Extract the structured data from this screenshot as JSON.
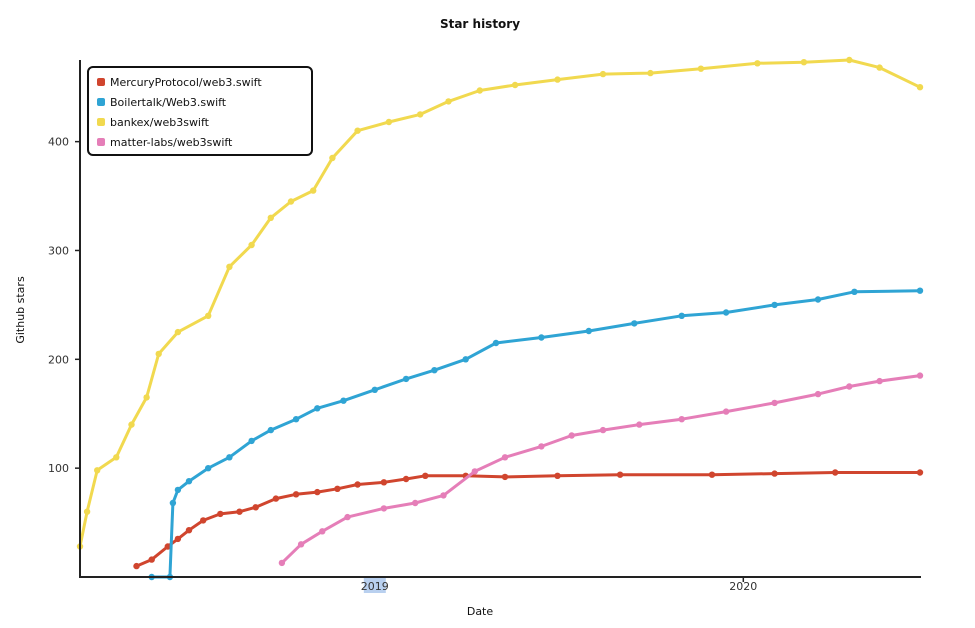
{
  "chart_data": {
    "type": "line",
    "title": "Star history",
    "xlabel": "Date",
    "ylabel": "Github stars",
    "xlim": [
      "2018-03-15",
      "2020-06-25"
    ],
    "ylim": [
      0,
      475
    ],
    "x_ticks": [
      {
        "date": "2019-01-01",
        "label": "2019",
        "highlight": true
      },
      {
        "date": "2020-01-01",
        "label": "2020",
        "highlight": false
      }
    ],
    "y_ticks": [
      100,
      200,
      300,
      400
    ],
    "legend_position": "top-left",
    "grid": false,
    "series": [
      {
        "name": "MercuryProtocol/web3.swift",
        "color": "#d0452e",
        "points": [
          [
            "2018-05-10",
            10
          ],
          [
            "2018-05-25",
            16
          ],
          [
            "2018-06-10",
            28
          ],
          [
            "2018-06-20",
            35
          ],
          [
            "2018-07-01",
            43
          ],
          [
            "2018-07-15",
            52
          ],
          [
            "2018-08-01",
            58
          ],
          [
            "2018-08-20",
            60
          ],
          [
            "2018-09-05",
            64
          ],
          [
            "2018-09-25",
            72
          ],
          [
            "2018-10-15",
            76
          ],
          [
            "2018-11-05",
            78
          ],
          [
            "2018-11-25",
            81
          ],
          [
            "2018-12-15",
            85
          ],
          [
            "2019-01-10",
            87
          ],
          [
            "2019-02-01",
            90
          ],
          [
            "2019-02-20",
            93
          ],
          [
            "2019-04-01",
            93
          ],
          [
            "2019-05-10",
            92
          ],
          [
            "2019-07-01",
            93
          ],
          [
            "2019-09-01",
            94
          ],
          [
            "2019-12-01",
            94
          ],
          [
            "2020-02-01",
            95
          ],
          [
            "2020-04-01",
            96
          ],
          [
            "2020-06-24",
            96
          ]
        ]
      },
      {
        "name": "Boilertalk/Web3.swift",
        "color": "#2fa4d4",
        "points": [
          [
            "2018-05-25",
            0
          ],
          [
            "2018-06-12",
            0
          ],
          [
            "2018-06-15",
            68
          ],
          [
            "2018-06-20",
            80
          ],
          [
            "2018-07-01",
            88
          ],
          [
            "2018-07-20",
            100
          ],
          [
            "2018-08-10",
            110
          ],
          [
            "2018-09-01",
            125
          ],
          [
            "2018-09-20",
            135
          ],
          [
            "2018-10-15",
            145
          ],
          [
            "2018-11-05",
            155
          ],
          [
            "2018-12-01",
            162
          ],
          [
            "2019-01-01",
            172
          ],
          [
            "2019-02-01",
            182
          ],
          [
            "2019-03-01",
            190
          ],
          [
            "2019-04-01",
            200
          ],
          [
            "2019-05-01",
            215
          ],
          [
            "2019-06-15",
            220
          ],
          [
            "2019-08-01",
            226
          ],
          [
            "2019-09-15",
            233
          ],
          [
            "2019-11-01",
            240
          ],
          [
            "2019-12-15",
            243
          ],
          [
            "2020-02-01",
            250
          ],
          [
            "2020-03-15",
            255
          ],
          [
            "2020-04-20",
            262
          ],
          [
            "2020-06-24",
            263
          ]
        ]
      },
      {
        "name": "bankex/web3swift",
        "color": "#f1d94f",
        "points": [
          [
            "2018-03-15",
            28
          ],
          [
            "2018-03-22",
            60
          ],
          [
            "2018-04-01",
            98
          ],
          [
            "2018-04-20",
            110
          ],
          [
            "2018-05-05",
            140
          ],
          [
            "2018-05-20",
            165
          ],
          [
            "2018-06-01",
            205
          ],
          [
            "2018-06-20",
            225
          ],
          [
            "2018-07-20",
            240
          ],
          [
            "2018-08-10",
            285
          ],
          [
            "2018-09-01",
            305
          ],
          [
            "2018-09-20",
            330
          ],
          [
            "2018-10-10",
            345
          ],
          [
            "2018-11-01",
            355
          ],
          [
            "2018-11-20",
            385
          ],
          [
            "2018-12-15",
            410
          ],
          [
            "2019-01-15",
            418
          ],
          [
            "2019-02-15",
            425
          ],
          [
            "2019-03-15",
            437
          ],
          [
            "2019-04-15",
            447
          ],
          [
            "2019-05-20",
            452
          ],
          [
            "2019-07-01",
            457
          ],
          [
            "2019-08-15",
            462
          ],
          [
            "2019-10-01",
            463
          ],
          [
            "2019-11-20",
            467
          ],
          [
            "2020-01-15",
            472
          ],
          [
            "2020-03-01",
            473
          ],
          [
            "2020-04-15",
            475
          ],
          [
            "2020-05-15",
            468
          ],
          [
            "2020-06-24",
            450
          ]
        ]
      },
      {
        "name": "matter-labs/web3swift",
        "color": "#e57eb8",
        "points": [
          [
            "2018-10-01",
            13
          ],
          [
            "2018-10-20",
            30
          ],
          [
            "2018-11-10",
            42
          ],
          [
            "2018-12-05",
            55
          ],
          [
            "2019-01-10",
            63
          ],
          [
            "2019-02-10",
            68
          ],
          [
            "2019-03-10",
            75
          ],
          [
            "2019-04-10",
            97
          ],
          [
            "2019-05-10",
            110
          ],
          [
            "2019-06-15",
            120
          ],
          [
            "2019-07-15",
            130
          ],
          [
            "2019-08-15",
            135
          ],
          [
            "2019-09-20",
            140
          ],
          [
            "2019-11-01",
            145
          ],
          [
            "2019-12-15",
            152
          ],
          [
            "2020-02-01",
            160
          ],
          [
            "2020-03-15",
            168
          ],
          [
            "2020-04-15",
            175
          ],
          [
            "2020-05-15",
            180
          ],
          [
            "2020-06-24",
            185
          ]
        ]
      }
    ]
  }
}
